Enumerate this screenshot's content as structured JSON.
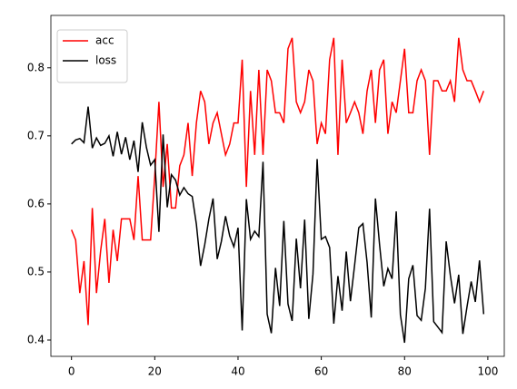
{
  "chart_data": {
    "type": "line",
    "x": [
      0,
      1,
      2,
      3,
      4,
      5,
      6,
      7,
      8,
      9,
      10,
      11,
      12,
      13,
      14,
      15,
      16,
      17,
      18,
      19,
      20,
      21,
      22,
      23,
      24,
      25,
      26,
      27,
      28,
      29,
      30,
      31,
      32,
      33,
      34,
      35,
      36,
      37,
      38,
      39,
      40,
      41,
      42,
      43,
      44,
      45,
      46,
      47,
      48,
      49,
      50,
      51,
      52,
      53,
      54,
      55,
      56,
      57,
      58,
      59,
      60,
      61,
      62,
      63,
      64,
      65,
      66,
      67,
      68,
      69,
      70,
      71,
      72,
      73,
      74,
      75,
      76,
      77,
      78,
      79,
      80,
      81,
      82,
      83,
      84,
      85,
      86,
      87,
      88,
      89,
      90,
      91,
      92,
      93,
      94,
      95,
      96,
      97,
      98,
      99
    ],
    "series": [
      {
        "name": "acc",
        "color": "#ff0000",
        "values": [
          0.562,
          0.547,
          0.469,
          0.516,
          0.422,
          0.594,
          0.469,
          0.531,
          0.578,
          0.484,
          0.562,
          0.516,
          0.578,
          0.578,
          0.578,
          0.547,
          0.641,
          0.547,
          0.547,
          0.547,
          0.641,
          0.75,
          0.625,
          0.688,
          0.594,
          0.594,
          0.656,
          0.672,
          0.719,
          0.641,
          0.719,
          0.766,
          0.75,
          0.688,
          0.719,
          0.734,
          0.703,
          0.672,
          0.688,
          0.719,
          0.719,
          0.812,
          0.625,
          0.766,
          0.672,
          0.797,
          0.672,
          0.797,
          0.781,
          0.734,
          0.734,
          0.719,
          0.828,
          0.844,
          0.75,
          0.734,
          0.75,
          0.797,
          0.781,
          0.688,
          0.719,
          0.703,
          0.812,
          0.844,
          0.672,
          0.812,
          0.719,
          0.734,
          0.75,
          0.734,
          0.703,
          0.766,
          0.797,
          0.719,
          0.797,
          0.812,
          0.703,
          0.75,
          0.734,
          0.781,
          0.828,
          0.734,
          0.734,
          0.781,
          0.797,
          0.781,
          0.672,
          0.781,
          0.781,
          0.766,
          0.766,
          0.781,
          0.75,
          0.844,
          0.797,
          0.781,
          0.781,
          0.766,
          0.75,
          0.766
        ]
      },
      {
        "name": "loss",
        "color": "#000000",
        "values": [
          0.688,
          0.694,
          0.696,
          0.69,
          0.743,
          0.682,
          0.697,
          0.686,
          0.689,
          0.7,
          0.67,
          0.706,
          0.673,
          0.698,
          0.665,
          0.693,
          0.647,
          0.72,
          0.683,
          0.657,
          0.665,
          0.559,
          0.702,
          0.595,
          0.643,
          0.635,
          0.613,
          0.624,
          0.615,
          0.611,
          0.57,
          0.509,
          0.54,
          0.578,
          0.608,
          0.519,
          0.545,
          0.582,
          0.553,
          0.537,
          0.565,
          0.414,
          0.607,
          0.548,
          0.56,
          0.552,
          0.662,
          0.438,
          0.41,
          0.506,
          0.45,
          0.575,
          0.453,
          0.428,
          0.549,
          0.476,
          0.577,
          0.431,
          0.497,
          0.666,
          0.548,
          0.552,
          0.536,
          0.424,
          0.494,
          0.443,
          0.53,
          0.457,
          0.51,
          0.565,
          0.571,
          0.514,
          0.433,
          0.608,
          0.54,
          0.479,
          0.505,
          0.49,
          0.589,
          0.437,
          0.396,
          0.49,
          0.51,
          0.436,
          0.429,
          0.476,
          0.593,
          0.427,
          0.419,
          0.411,
          0.545,
          0.495,
          0.454,
          0.496,
          0.409,
          0.449,
          0.486,
          0.456,
          0.517,
          0.438
        ]
      }
    ],
    "xlim": [
      -4.95,
      103.95
    ],
    "xticks": [
      0,
      20,
      40,
      60,
      80,
      100
    ],
    "ylim": [
      0.376,
      0.877
    ],
    "yticks": [
      0.4,
      0.5,
      0.6,
      0.7,
      0.8
    ],
    "legend": "upper left"
  }
}
